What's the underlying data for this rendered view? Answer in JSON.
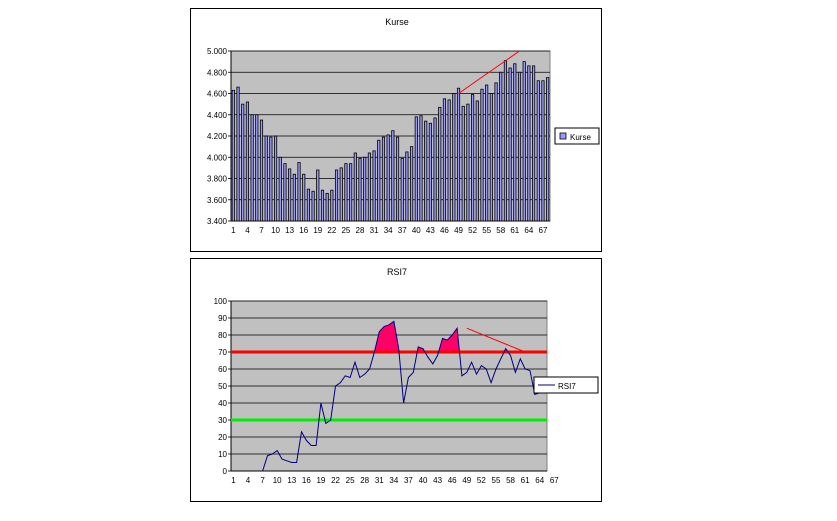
{
  "chart_data": [
    {
      "type": "bar",
      "title": "Kurse",
      "xlabel": "",
      "ylabel": "",
      "ylim": [
        3400,
        5000
      ],
      "y_ticks": [
        "3.400",
        "3.600",
        "3.800",
        "4.000",
        "4.200",
        "4.400",
        "4.600",
        "4.800",
        "5.000"
      ],
      "x_tick_labels": [
        "1",
        "4",
        "7",
        "10",
        "13",
        "16",
        "19",
        "22",
        "25",
        "28",
        "31",
        "34",
        "37",
        "40",
        "43",
        "46",
        "49",
        "52",
        "55",
        "58",
        "61",
        "64",
        "67"
      ],
      "grid": true,
      "legend_position": "right",
      "colors": {
        "plot_bg": "#c0c0c0",
        "bar_fill": "#9999ff",
        "bar_stroke": "#000000",
        "trend": "#ff0000"
      },
      "series": [
        {
          "name": "Kurse",
          "values": [
            4630,
            4660,
            4500,
            4520,
            4400,
            4400,
            4350,
            4200,
            4190,
            4200,
            4000,
            3940,
            3890,
            3840,
            3950,
            3840,
            3700,
            3680,
            3880,
            3690,
            3660,
            3690,
            3880,
            3900,
            3940,
            3940,
            4040,
            3990,
            4000,
            4040,
            4060,
            4160,
            4190,
            4210,
            4250,
            4190,
            3990,
            4050,
            4100,
            4380,
            4390,
            4340,
            4320,
            4370,
            4470,
            4550,
            4540,
            4600,
            4650,
            4480,
            4500,
            4590,
            4530,
            4640,
            4680,
            4600,
            4700,
            4800,
            4910,
            4840,
            4880,
            4800,
            4900,
            4860,
            4860,
            4720,
            4720,
            4750
          ]
        }
      ],
      "annotations": [
        {
          "type": "trendline",
          "from": [
            49,
            4600
          ],
          "to": [
            62,
            5000
          ]
        }
      ]
    },
    {
      "type": "line",
      "title": "RSI7",
      "xlabel": "",
      "ylabel": "",
      "ylim": [
        0,
        100
      ],
      "y_ticks": [
        "0",
        "10",
        "20",
        "30",
        "40",
        "50",
        "60",
        "70",
        "80",
        "90",
        "100"
      ],
      "x_tick_labels": [
        "1",
        "4",
        "7",
        "10",
        "13",
        "16",
        "19",
        "22",
        "25",
        "28",
        "31",
        "34",
        "37",
        "40",
        "43",
        "46",
        "49",
        "52",
        "55",
        "58",
        "61",
        "64",
        "67"
      ],
      "grid": true,
      "legend_position": "right",
      "colors": {
        "plot_bg": "#c0c0c0",
        "line": "#000080",
        "overbought_line": "#ff0000",
        "oversold_line": "#00ee00",
        "fill": "#ff0066",
        "trend": "#ff0000"
      },
      "thresholds": {
        "upper": 70,
        "lower": 30
      },
      "series": [
        {
          "name": "RSI7",
          "start_index": 7,
          "values": [
            0,
            9,
            10,
            12,
            7,
            6,
            5,
            5,
            23,
            18,
            15,
            15,
            40,
            28,
            30,
            50,
            52,
            56,
            55,
            64,
            55,
            57,
            60,
            70,
            82,
            85,
            86,
            88,
            72,
            40,
            55,
            58,
            73,
            72,
            67,
            63,
            68,
            78,
            77,
            80,
            84,
            56,
            58,
            64,
            57,
            62,
            60,
            52,
            60,
            66,
            72,
            68,
            58,
            66,
            60,
            59,
            45,
            46,
            47
          ]
        }
      ],
      "annotations": [
        {
          "type": "trendline",
          "from": [
            49,
            84
          ],
          "to": [
            61,
            70
          ]
        }
      ]
    }
  ]
}
